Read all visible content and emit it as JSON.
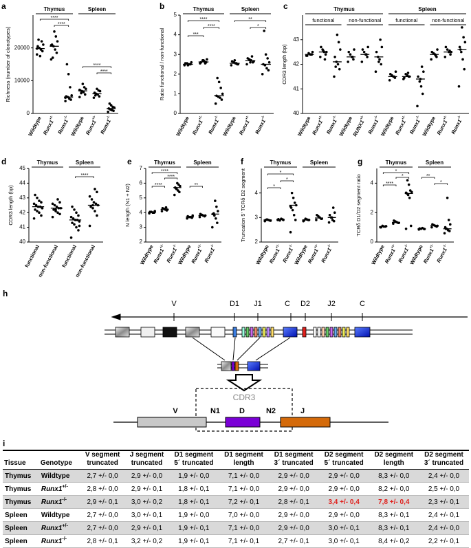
{
  "chart_data": [
    {
      "type": "strip",
      "label": "a",
      "ylabel": "Richness (number of clonotypes)",
      "groups": [
        "Thymus",
        "Spleen"
      ],
      "categories": [
        "Wildtype",
        "Runx1+/-",
        "Runx1-/-",
        "Wildtype",
        "Runx1+/-",
        "Runx1-/-"
      ],
      "points": [
        [
          18000,
          19000,
          19500,
          20000,
          20500,
          21000,
          22000,
          17500,
          22500,
          19800
        ],
        [
          16500,
          18500,
          19500,
          20500,
          21000,
          22000,
          23500,
          25000,
          17000,
          20800
        ],
        [
          3800,
          4200,
          4500,
          5000,
          5200,
          5500,
          8000,
          12000,
          15000,
          4800
        ],
        [
          5000,
          5800,
          6500,
          6800,
          7000,
          7500,
          8000,
          9000,
          6200,
          7200
        ],
        [
          4800,
          5200,
          5800,
          6000,
          6300,
          6800,
          7000,
          7500,
          5500
        ],
        [
          500,
          800,
          1000,
          1200,
          1500,
          1800,
          2000,
          2500,
          3000
        ]
      ],
      "medians": [
        19800,
        20500,
        5000,
        6900,
        6000,
        1500
      ],
      "ylim": [
        0,
        30000
      ],
      "yticks": [
        0,
        10000,
        20000
      ],
      "annotations": [
        "****",
        "****",
        "****",
        "****"
      ],
      "color": "#000000"
    },
    {
      "type": "strip",
      "label": "b",
      "ylabel": "Ratio functional / non-functional",
      "groups": [
        "Thymus",
        "Spleen"
      ],
      "categories": [
        "Wildtype",
        "Runx1+/-",
        "Runx1-/-",
        "Wildtype",
        "Runx1+/-",
        "Runx1-/-"
      ],
      "points": [
        [
          2.45,
          2.5,
          2.5,
          2.55,
          2.55,
          2.6,
          2.5,
          2.45
        ],
        [
          2.55,
          2.6,
          2.65,
          2.7,
          2.6,
          2.75,
          2.55,
          2.7
        ],
        [
          0.5,
          0.7,
          0.8,
          0.85,
          0.9,
          1.0,
          1.3,
          1.6,
          1.8
        ],
        [
          2.45,
          2.5,
          2.55,
          2.6,
          2.65,
          2.5,
          2.55,
          2.7
        ],
        [
          2.5,
          2.6,
          2.7,
          2.75,
          2.8,
          2.65,
          2.9,
          2.6
        ],
        [
          2.0,
          2.2,
          2.3,
          2.45,
          2.5,
          2.6,
          2.8,
          3.0,
          4.2
        ]
      ],
      "medians": [
        2.5,
        2.62,
        0.9,
        2.55,
        2.68,
        2.5
      ],
      "ylim": [
        0,
        5
      ],
      "yticks": [
        0,
        1,
        2,
        3,
        4,
        5
      ],
      "annotations": [
        "****",
        "****",
        "***",
        "**",
        "*"
      ],
      "color": "#000000"
    },
    {
      "type": "strip",
      "label": "c",
      "ylabel": "CDR3 length (bp)",
      "groups": [
        "Thymus",
        "Spleen"
      ],
      "subgroups": [
        "functional",
        "non-functional",
        "functional",
        "non-functional"
      ],
      "categories": [
        "Wildtype",
        "Runx1+/-",
        "Runx1-/-",
        "Wildtype",
        "RUNX1+/-",
        "Runx1-/-",
        "Wildtype",
        "Runx1+/-",
        "Runx1-/-",
        "Wildtype",
        "Runx1+/-",
        "Runx1-/-"
      ],
      "points": [
        [
          42.35,
          42.4,
          42.4,
          42.45,
          42.35,
          42.5,
          42.4
        ],
        [
          42.3,
          42.4,
          42.5,
          42.6,
          42.7,
          42.5,
          42.2,
          42.55
        ],
        [
          41.5,
          41.8,
          42.0,
          42.1,
          42.3,
          42.6,
          42.9,
          43.2,
          41.9
        ],
        [
          42.1,
          42.2,
          42.3,
          42.4,
          42.5,
          42.6,
          42.3
        ],
        [
          42.1,
          42.3,
          42.4,
          42.5,
          42.6,
          42.7,
          42.4
        ],
        [
          41.7,
          42.0,
          42.2,
          42.3,
          42.5,
          42.7,
          43.0,
          42.1
        ],
        [
          41.35,
          41.45,
          41.5,
          41.55,
          41.6,
          41.7,
          41.5
        ],
        [
          41.4,
          41.5,
          41.55,
          41.6,
          41.45,
          41.5,
          41.65
        ],
        [
          40.3,
          40.8,
          41.1,
          41.3,
          41.5,
          41.7,
          41.9,
          41.4
        ],
        [
          42.2,
          42.3,
          42.4,
          42.45,
          42.5,
          42.6,
          42.35
        ],
        [
          42.3,
          42.4,
          42.5,
          42.6,
          42.7,
          42.5,
          42.55
        ],
        [
          41.1,
          41.8,
          42.2,
          42.5,
          42.7,
          42.9,
          43.1,
          43.5,
          42.6
        ]
      ],
      "medians": [
        42.4,
        42.5,
        42.1,
        42.3,
        42.4,
        42.3,
        41.5,
        41.5,
        41.4,
        42.4,
        42.5,
        42.6
      ],
      "ylim": [
        40,
        44
      ],
      "yticks": [
        40,
        41,
        42,
        43
      ],
      "color": "#000000"
    },
    {
      "type": "strip",
      "label": "d",
      "ylabel": "CDR3 length (bp)",
      "groups": [
        "Thymus",
        "Spleen"
      ],
      "categories": [
        "functional",
        "non-functional",
        "functional",
        "non-functional"
      ],
      "points": [
        [
          41.6,
          41.8,
          42.0,
          42.1,
          42.2,
          42.3,
          42.4,
          42.4,
          42.5,
          42.6,
          42.7,
          42.8,
          43.0,
          43.2,
          42.3
        ],
        [
          41.7,
          41.9,
          42.0,
          42.1,
          42.2,
          42.3,
          42.3,
          42.4,
          42.5,
          42.6,
          42.7,
          42.9,
          42.2
        ],
        [
          40.3,
          40.8,
          41.0,
          41.2,
          41.3,
          41.4,
          41.5,
          41.5,
          41.6,
          41.7,
          41.8,
          42.0,
          42.2,
          42.4,
          41.1
        ],
        [
          41.1,
          41.8,
          42.1,
          42.3,
          42.4,
          42.5,
          42.6,
          42.7,
          42.9,
          43.1,
          43.4,
          43.6,
          42.5
        ]
      ],
      "medians": [
        42.4,
        42.3,
        41.5,
        42.5
      ],
      "ylim": [
        40,
        45
      ],
      "yticks": [
        40,
        41,
        42,
        43,
        44,
        45
      ],
      "annotations": [
        "****"
      ],
      "color": "#000000"
    },
    {
      "type": "strip",
      "label": "e",
      "ylabel": "N length (N1 + N2)",
      "groups": [
        "Thymus",
        "Spleen"
      ],
      "categories": [
        "Wildtype",
        "Runx1+/-",
        "Runx1-/-",
        "Wildtype",
        "Runx1+/-",
        "Runx1-/-"
      ],
      "points": [
        [
          3.95,
          4.0,
          4.0,
          4.05,
          4.05,
          4.1,
          4.0
        ],
        [
          4.1,
          4.15,
          4.2,
          4.25,
          4.3,
          4.2,
          4.35
        ],
        [
          5.2,
          5.4,
          5.5,
          5.6,
          5.7,
          5.8,
          5.9,
          6.0,
          5.65
        ],
        [
          3.6,
          3.65,
          3.7,
          3.7,
          3.75,
          3.8,
          3.68
        ],
        [
          3.7,
          3.75,
          3.8,
          3.85,
          3.9,
          3.8
        ],
        [
          3.0,
          3.3,
          3.6,
          3.8,
          3.9,
          4.1,
          4.4,
          4.8,
          3.95
        ]
      ],
      "medians": [
        4.02,
        4.22,
        5.7,
        3.7,
        3.8,
        3.9
      ],
      "ylim": [
        2,
        7
      ],
      "yticks": [
        2,
        3,
        4,
        5,
        6,
        7
      ],
      "annotations": [
        "****",
        "****",
        "****",
        "**"
      ],
      "color": "#000000"
    },
    {
      "type": "strip",
      "label": "f",
      "ylabel": "Truncation 5' TCRδ D2 segment",
      "groups": [
        "Thymus",
        "Spleen"
      ],
      "categories": [
        "Wildtype",
        "Runx1+/-",
        "Runx1-/-",
        "Wildtype",
        "Runx1+/-",
        "Runx1-/-"
      ],
      "points": [
        [
          2.85,
          2.88,
          2.9,
          2.92,
          2.9,
          2.87
        ],
        [
          2.9,
          2.92,
          2.95,
          2.88,
          2.93,
          2.9
        ],
        [
          2.4,
          2.9,
          3.1,
          3.3,
          3.4,
          3.5,
          3.6,
          3.8,
          4.0,
          3.45
        ],
        [
          2.85,
          2.9,
          2.92,
          2.95,
          2.88,
          2.9
        ],
        [
          2.9,
          2.95,
          3.0,
          3.05,
          3.1,
          2.95
        ],
        [
          2.8,
          2.85,
          2.9,
          3.0,
          3.1,
          3.2,
          3.4,
          3.0
        ]
      ],
      "medians": [
        2.9,
        2.92,
        3.5,
        2.9,
        2.98,
        3.0
      ],
      "ylim": [
        2,
        5
      ],
      "yticks": [
        2,
        3,
        4
      ],
      "annotations": [
        "*",
        "*",
        "*"
      ],
      "color": "#000000"
    },
    {
      "type": "strip",
      "label": "g",
      "ylabel": "TCRδ D1/D2 segment ratio",
      "groups": [
        "Thymus",
        "Spleen"
      ],
      "categories": [
        "Wildtype",
        "Runx1+/-",
        "Runx1-/-",
        "Wildtype",
        "Runx1+/-",
        "Runx1-/-"
      ],
      "points": [
        [
          1.0,
          1.05,
          1.05,
          1.1,
          1.0,
          1.08
        ],
        [
          1.25,
          1.3,
          1.35,
          1.4,
          1.45,
          1.3
        ],
        [
          0.9,
          1.1,
          3.0,
          3.2,
          3.3,
          3.4,
          3.5,
          3.9,
          4.2,
          3.35
        ],
        [
          0.85,
          0.9,
          0.95,
          0.9,
          0.92,
          0.88
        ],
        [
          1.0,
          1.05,
          1.1,
          1.15,
          1.2,
          1.1
        ],
        [
          0.6,
          0.75,
          0.8,
          0.9,
          1.0,
          1.2,
          1.5,
          3.0,
          0.9
        ]
      ],
      "medians": [
        1.05,
        1.33,
        3.3,
        0.9,
        1.12,
        0.9
      ],
      "ylim": [
        0,
        5
      ],
      "yticks": [
        0,
        2,
        4
      ],
      "annotations": [
        "*",
        "*",
        "****",
        "**",
        "*"
      ],
      "color": "#000000"
    }
  ],
  "diagram": {
    "label": "h",
    "locus": [
      "V",
      "D1",
      "J1",
      "C",
      "D2",
      "J2",
      "C"
    ],
    "cdr3": "CDR3",
    "rearranged": [
      "V",
      "N1",
      "D",
      "N2",
      "J"
    ]
  },
  "table": {
    "label": "i",
    "header": [
      [
        "Tissue"
      ],
      [
        "Genotype"
      ],
      [
        "V segment",
        "truncated"
      ],
      [
        "J segment",
        "truncated"
      ],
      [
        "D1 segment",
        "5´ truncated"
      ],
      [
        "D1 segment",
        "length"
      ],
      [
        "D1 segment",
        "3´ truncated"
      ],
      [
        "D2 segment",
        "5´ truncated"
      ],
      [
        "D2 segment",
        "length"
      ],
      [
        "D2 segment",
        "3´ truncated"
      ]
    ],
    "rows": [
      [
        "Thymus",
        "Wildtype",
        "2,7 +/- 0,0",
        "2,9 +/- 0,0",
        "1,9 +/- 0,0",
        "7,1 +/- 0,0",
        "2,9 +/- 0,0",
        "2,9 +/- 0,0",
        "8,3 +/- 0,0",
        "2,4 +/- 0,0"
      ],
      [
        "Thymus",
        "Runx1+/-",
        "2,8 +/- 0,0",
        "2,9 +/- 0,1",
        "1,8 +/- 0,1",
        "7,1 +/- 0,0",
        "2,9 +/- 0,0",
        "2,9 +/- 0,0",
        "8,2 +/- 0,0",
        "2,5 +/- 0,0"
      ],
      [
        "Thymus",
        "Runx1-/-",
        "2,9 +/- 0,1",
        "3,0 +/- 0,2",
        "1,8 +/- 0,1",
        "7,2 +/- 0,1",
        "2,8 +/- 0,1",
        "3,4 +/- 0,4",
        "7,8 +/- 0,4",
        "2,3 +/- 0,1"
      ],
      [
        "Spleen",
        "Wildtype",
        "2,7 +/- 0,0",
        "3,0 +/- 0,1",
        "1,9 +/- 0,0",
        "7,0 +/- 0,0",
        "2,9 +/- 0,0",
        "2,9 +/- 0,0",
        "8,3 +/- 0,1",
        "2,4 +/- 0,1"
      ],
      [
        "Spleen",
        "Runx1+/-",
        "2,7 +/- 0,0",
        "2,9 +/- 0,1",
        "1,9 +/- 0,1",
        "7,1 +/- 0,0",
        "2,9 +/- 0,0",
        "3,0 +/- 0,1",
        "8,3 +/- 0,1",
        "2,4 +/- 0,0"
      ],
      [
        "Spleen",
        "Runx1-/-",
        "2,8 +/- 0,1",
        "3,2 +/- 0,2",
        "1,9 +/- 0,1",
        "7,1 +/- 0,1",
        "2,7 +/- 0,1",
        "3,0 +/- 0,1",
        "8,4 +/- 0,2",
        "2,2 +/- 0,1"
      ]
    ]
  }
}
